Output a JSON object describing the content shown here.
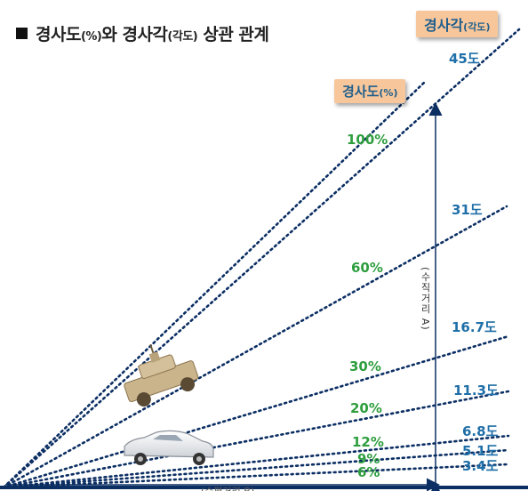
{
  "title": {
    "main": "경사도",
    "pct": "(%)",
    "mid": "와 경사각",
    "paren": "(각도)",
    "tail": " 상관 관계"
  },
  "badge_angle": {
    "main": "경사각",
    "paren": "(각도)"
  },
  "badge_slope": {
    "main": "경사도",
    "paren": "(%)"
  },
  "slopes": [
    {
      "percent_label": "100%",
      "angle_label": "45도",
      "percent": 100
    },
    {
      "percent_label": "60%",
      "angle_label": "31도",
      "percent": 60
    },
    {
      "percent_label": "30%",
      "angle_label": "16.7도",
      "percent": 30
    },
    {
      "percent_label": "20%",
      "angle_label": "11.3도",
      "percent": 20
    },
    {
      "percent_label": "12%",
      "angle_label": "6.8도",
      "percent": 12
    },
    {
      "percent_label": "9%",
      "angle_label": "5.1도",
      "percent": 9
    },
    {
      "percent_label": "6%",
      "angle_label": "3.4도",
      "percent": 6
    }
  ],
  "vertical_label": "(수직거리 A)",
  "horizontal_label": "(수평거리 B)",
  "colors": {
    "line": "#0b2e63",
    "percent": "#2e9e3e",
    "angle": "#1f6fa8",
    "badge": "#f7c79b"
  }
}
